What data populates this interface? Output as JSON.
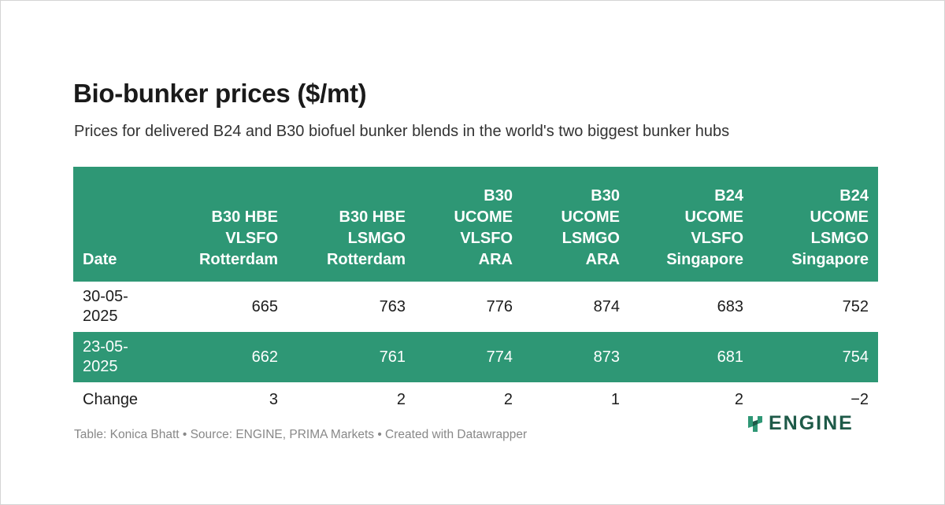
{
  "title": "Bio-bunker prices ($/mt)",
  "subtitle": "Prices for delivered B24 and B30 biofuel bunker blends in the world's two biggest bunker hubs",
  "footer": "Table: Konica Bhatt • Source: ENGINE, PRIMA Markets • Created with Datawrapper",
  "logo_text": "ENGINE",
  "colors": {
    "header_bg": "#2e9775",
    "stripe_bg": "#2e9775",
    "logo": "#1e5a48"
  },
  "chart_data": {
    "type": "table",
    "title": "Bio-bunker prices ($/mt)",
    "columns": [
      {
        "lines": [
          "Date"
        ]
      },
      {
        "lines": [
          "B30 HBE",
          "VLSFO",
          "Rotterdam"
        ]
      },
      {
        "lines": [
          "B30 HBE",
          "LSMGO",
          "Rotterdam"
        ]
      },
      {
        "lines": [
          "B30",
          "UCOME",
          "VLSFO",
          "ARA"
        ]
      },
      {
        "lines": [
          "B30",
          "UCOME",
          "LSMGO",
          "ARA"
        ]
      },
      {
        "lines": [
          "B24",
          "UCOME",
          "VLSFO",
          "Singapore"
        ]
      },
      {
        "lines": [
          "B24",
          "UCOME",
          "LSMGO",
          "Singapore"
        ]
      }
    ],
    "rows": [
      {
        "date_lines": [
          "30-05-",
          "2025"
        ],
        "values": [
          "665",
          "763",
          "776",
          "874",
          "683",
          "752"
        ]
      },
      {
        "date_lines": [
          "23-05-",
          "2025"
        ],
        "values": [
          "662",
          "761",
          "774",
          "873",
          "681",
          "754"
        ]
      },
      {
        "date_lines": [
          "Change"
        ],
        "values": [
          "3",
          "2",
          "2",
          "1",
          "2",
          "−2"
        ]
      }
    ]
  }
}
